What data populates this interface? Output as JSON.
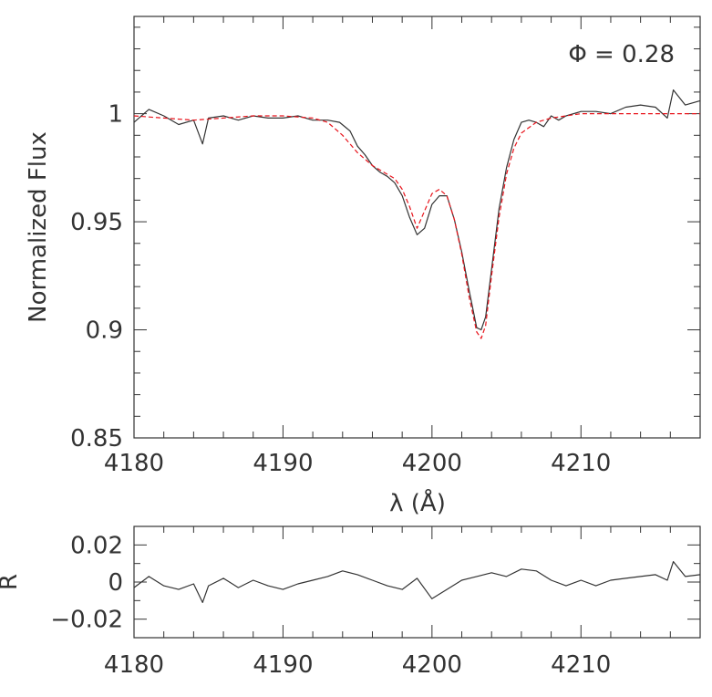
{
  "chart_data": [
    {
      "type": "line",
      "annotation": "Φ  =  0.28",
      "xlabel": "λ (Å)",
      "ylabel": "Normalized Flux",
      "xlim": [
        4180,
        4218
      ],
      "ylim": [
        0.85,
        1.045
      ],
      "x_ticks": [
        4180,
        4190,
        4200,
        4210
      ],
      "x_tick_labels": [
        "4180",
        "4190",
        "4200",
        "4210"
      ],
      "y_ticks": [
        0.85,
        0.9,
        0.95,
        1.0
      ],
      "y_tick_labels": [
        "0.85",
        "0.9",
        "0.95",
        "1"
      ],
      "series": [
        {
          "style": "solid",
          "color": "#333333",
          "x": [
            4180,
            4181,
            4182,
            4183,
            4184,
            4184.6,
            4185,
            4186,
            4187,
            4188,
            4189,
            4190,
            4191,
            4192,
            4193,
            4193.8,
            4194.5,
            4195,
            4195.5,
            4196,
            4196.5,
            4197,
            4197.5,
            4198,
            4198.5,
            4199,
            4199.5,
            4200,
            4200.5,
            4201,
            4201.5,
            4202,
            4202.5,
            4203,
            4203.3,
            4203.6,
            4204,
            4204.5,
            4205,
            4205.5,
            4206,
            4206.5,
            4207,
            4207.5,
            4208,
            4208.5,
            4209,
            4210,
            4211,
            4212,
            4213,
            4214,
            4215,
            4215.8,
            4216.2,
            4217,
            4218
          ],
          "y": [
            0.996,
            1.002,
            0.999,
            0.995,
            0.997,
            0.986,
            0.998,
            0.999,
            0.997,
            0.999,
            0.998,
            0.998,
            0.999,
            0.997,
            0.997,
            0.996,
            0.992,
            0.985,
            0.981,
            0.976,
            0.973,
            0.971,
            0.968,
            0.962,
            0.952,
            0.944,
            0.947,
            0.958,
            0.962,
            0.962,
            0.951,
            0.936,
            0.918,
            0.901,
            0.9,
            0.906,
            0.928,
            0.956,
            0.975,
            0.988,
            0.996,
            0.997,
            0.996,
            0.994,
            0.999,
            0.997,
            0.999,
            1.001,
            1.001,
            1.0,
            1.003,
            1.004,
            1.003,
            0.998,
            1.011,
            1.004,
            1.006
          ]
        },
        {
          "style": "dashed",
          "color": "#e8141c",
          "x": [
            4180,
            4182,
            4184,
            4186,
            4188,
            4190,
            4192,
            4193,
            4194,
            4195,
            4196,
            4197,
            4197.5,
            4198,
            4198.5,
            4199,
            4199.5,
            4200,
            4200.5,
            4201,
            4201.5,
            4202,
            4202.5,
            4203,
            4203.3,
            4203.6,
            4204,
            4204.5,
            4205,
            4205.5,
            4206,
            4207,
            4208,
            4209,
            4210,
            4212,
            4214,
            4216,
            4218
          ],
          "y": [
            0.999,
            0.998,
            0.997,
            0.998,
            0.999,
            0.999,
            0.998,
            0.996,
            0.99,
            0.982,
            0.976,
            0.972,
            0.97,
            0.965,
            0.957,
            0.947,
            0.955,
            0.963,
            0.965,
            0.962,
            0.951,
            0.935,
            0.915,
            0.899,
            0.896,
            0.902,
            0.925,
            0.952,
            0.972,
            0.984,
            0.991,
            0.996,
            0.998,
            0.999,
            1.0,
            1.0,
            1.0,
            1.0,
            1.0
          ]
        }
      ]
    },
    {
      "type": "line",
      "ylabel": "R",
      "xlim": [
        4180,
        4218
      ],
      "ylim": [
        -0.03,
        0.03
      ],
      "x_ticks": [
        4180,
        4190,
        4200,
        4210
      ],
      "x_tick_labels": [
        "4180",
        "4190",
        "4200",
        "4210"
      ],
      "y_ticks": [
        -0.02,
        0,
        0.02
      ],
      "y_tick_labels": [
        "−0.02",
        "0",
        "0.02"
      ],
      "series": [
        {
          "style": "solid",
          "color": "#333333",
          "x": [
            4180,
            4181,
            4182,
            4183,
            4184,
            4184.6,
            4185,
            4186,
            4187,
            4188,
            4189,
            4190,
            4191,
            4192,
            4193,
            4194,
            4195,
            4196,
            4197,
            4198,
            4199,
            4200,
            4201,
            4202,
            4203,
            4204,
            4205,
            4206,
            4207,
            4208,
            4209,
            4210,
            4211,
            4212,
            4213,
            4214,
            4215,
            4215.8,
            4216.2,
            4217,
            4218
          ],
          "y": [
            -0.003,
            0.003,
            -0.002,
            -0.004,
            -0.001,
            -0.011,
            -0.002,
            0.002,
            -0.003,
            0.001,
            -0.002,
            -0.004,
            -0.001,
            0.001,
            0.003,
            0.006,
            0.004,
            0.001,
            -0.002,
            -0.004,
            0.002,
            -0.009,
            -0.004,
            0.001,
            0.003,
            0.005,
            0.003,
            0.007,
            0.006,
            0.001,
            -0.002,
            0.001,
            -0.002,
            0.001,
            0.002,
            0.003,
            0.004,
            0.001,
            0.011,
            0.003,
            0.004
          ]
        }
      ]
    }
  ]
}
